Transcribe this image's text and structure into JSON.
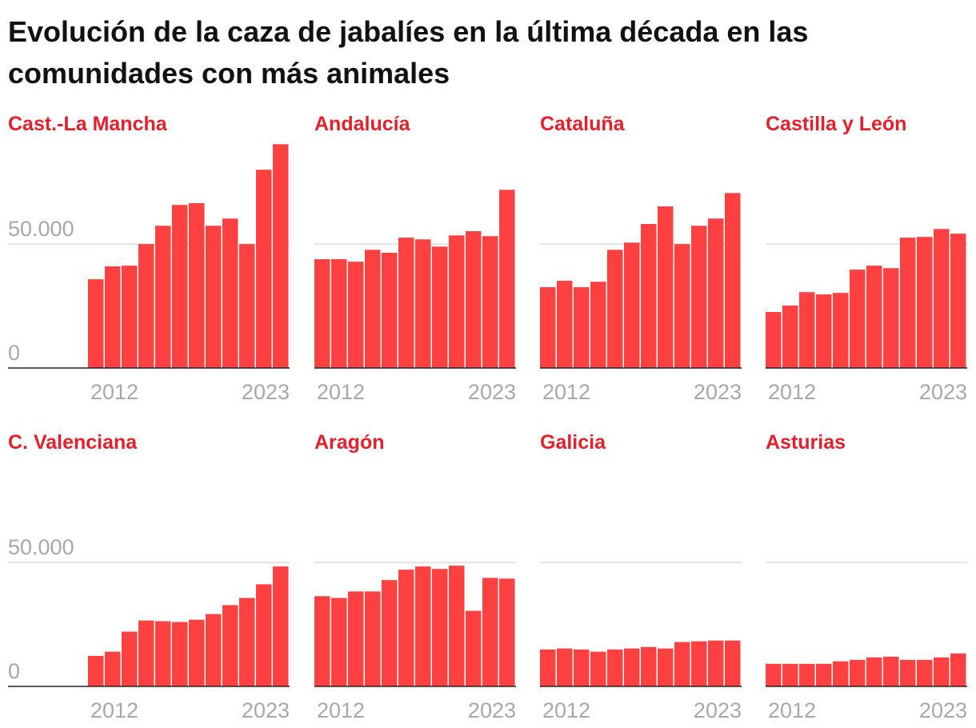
{
  "title": "Evolución de la caza de jabalíes en la última década en las comunidades con más animales",
  "chart_data": [
    {
      "type": "bar",
      "title": "Cast.-La Mancha",
      "color": "#ff4040",
      "show_ytick_labels": true,
      "categories": [
        "2012",
        null,
        null,
        null,
        null,
        null,
        null,
        null,
        null,
        null,
        null,
        "2023"
      ],
      "values": [
        35800,
        41000,
        41300,
        50000,
        57400,
        65800,
        66500,
        57400,
        60300,
        50000,
        80000,
        90300
      ],
      "ylim": [
        0,
        92000
      ],
      "yticks": [
        0,
        {
          "value": 50000,
          "label": "50.000"
        }
      ],
      "grid": true
    },
    {
      "type": "bar",
      "title": "Andalucía",
      "color": "#ff4040",
      "show_ytick_labels": false,
      "categories": [
        "2012",
        null,
        null,
        null,
        null,
        null,
        null,
        null,
        null,
        null,
        null,
        "2023"
      ],
      "values": [
        43900,
        43900,
        42900,
        47700,
        46500,
        52600,
        51900,
        49000,
        53500,
        55200,
        53200,
        71900
      ],
      "ylim": [
        0,
        92000
      ],
      "yticks": [
        0,
        50000
      ],
      "grid": true
    },
    {
      "type": "bar",
      "title": "Cataluña",
      "color": "#ff4040",
      "show_ytick_labels": false,
      "categories": [
        "2012",
        null,
        null,
        null,
        null,
        null,
        null,
        null,
        null,
        null,
        null,
        "2023"
      ],
      "values": [
        32600,
        35200,
        32600,
        34800,
        47700,
        50600,
        58100,
        65200,
        50000,
        57400,
        60300,
        70600
      ],
      "ylim": [
        0,
        92000
      ],
      "yticks": [
        0,
        50000
      ],
      "grid": true
    },
    {
      "type": "bar",
      "title": "Castilla y León",
      "color": "#ff4040",
      "show_ytick_labels": false,
      "categories": [
        "2012",
        null,
        null,
        null,
        null,
        null,
        null,
        null,
        null,
        null,
        null,
        "2023"
      ],
      "values": [
        22600,
        25200,
        30600,
        29700,
        30300,
        39700,
        41300,
        40300,
        52600,
        52900,
        56100,
        54200
      ],
      "ylim": [
        0,
        92000
      ],
      "yticks": [
        0,
        50000
      ],
      "grid": true
    },
    {
      "type": "bar",
      "title": "C. Valenciana",
      "color": "#ff4040",
      "show_ytick_labels": true,
      "categories": [
        "2012",
        null,
        null,
        null,
        null,
        null,
        null,
        null,
        null,
        null,
        null,
        "2023"
      ],
      "values": [
        12300,
        14000,
        22100,
        26600,
        26300,
        26000,
        26900,
        29200,
        32800,
        35700,
        41200,
        48400
      ],
      "ylim": [
        0,
        92000
      ],
      "yticks": [
        0,
        {
          "value": 50000,
          "label": "50.000"
        }
      ],
      "grid": true
    },
    {
      "type": "bar",
      "title": "Aragón",
      "color": "#ff4040",
      "show_ytick_labels": false,
      "categories": [
        "2012",
        null,
        null,
        null,
        null,
        null,
        null,
        null,
        null,
        null,
        null,
        "2023"
      ],
      "values": [
        36400,
        35700,
        38300,
        38300,
        42900,
        47100,
        48400,
        47400,
        48700,
        30500,
        43800,
        43500
      ],
      "ylim": [
        0,
        92000
      ],
      "yticks": [
        0,
        50000
      ],
      "grid": true
    },
    {
      "type": "bar",
      "title": "Galicia",
      "color": "#ff4040",
      "show_ytick_labels": false,
      "categories": [
        "2012",
        null,
        null,
        null,
        null,
        null,
        null,
        null,
        null,
        null,
        null,
        "2023"
      ],
      "values": [
        14900,
        15300,
        14900,
        14000,
        14900,
        15300,
        15900,
        15300,
        17900,
        18200,
        18500,
        18500
      ],
      "ylim": [
        0,
        92000
      ],
      "yticks": [
        0,
        50000
      ],
      "grid": true
    },
    {
      "type": "bar",
      "title": "Asturias",
      "color": "#ff4040",
      "show_ytick_labels": false,
      "categories": [
        "2012",
        null,
        null,
        null,
        null,
        null,
        null,
        null,
        null,
        null,
        null,
        "2023"
      ],
      "values": [
        9100,
        9100,
        9100,
        9100,
        10100,
        10700,
        11700,
        12000,
        10700,
        10700,
        11700,
        13300
      ],
      "ylim": [
        0,
        92000
      ],
      "yticks": [
        0,
        50000
      ],
      "grid": true
    }
  ]
}
